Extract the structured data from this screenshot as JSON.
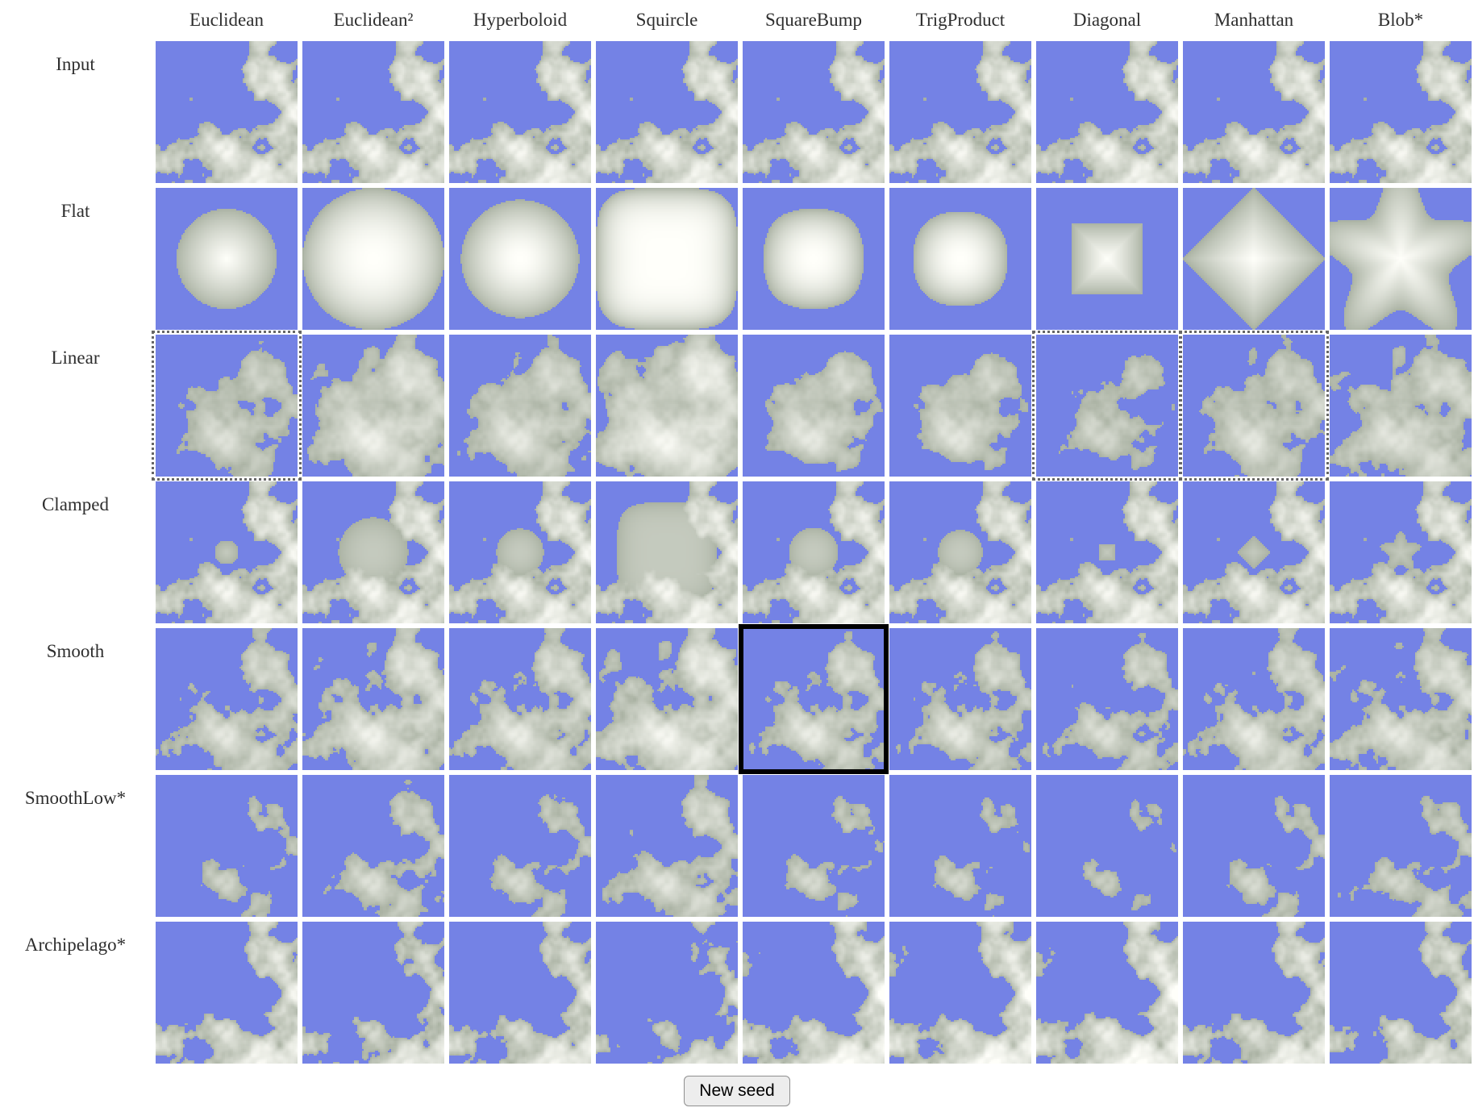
{
  "columns": [
    {
      "key": "euclidean",
      "label": "Euclidean"
    },
    {
      "key": "euclidean2",
      "label": "Euclidean²"
    },
    {
      "key": "hyperboloid",
      "label": "Hyperboloid"
    },
    {
      "key": "squircle",
      "label": "Squircle"
    },
    {
      "key": "squarebump",
      "label": "SquareBump"
    },
    {
      "key": "trigproduct",
      "label": "TrigProduct"
    },
    {
      "key": "diagonal",
      "label": "Diagonal"
    },
    {
      "key": "manhattan",
      "label": "Manhattan"
    },
    {
      "key": "blob",
      "label": "Blob*"
    }
  ],
  "rows": [
    {
      "key": "input",
      "label": "Input"
    },
    {
      "key": "flat",
      "label": "Flat"
    },
    {
      "key": "linear",
      "label": "Linear"
    },
    {
      "key": "clamped",
      "label": "Clamped"
    },
    {
      "key": "smooth",
      "label": "Smooth"
    },
    {
      "key": "smoothlow",
      "label": "SmoothLow*"
    },
    {
      "key": "archipelago",
      "label": "Archipelago*"
    }
  ],
  "highlights": {
    "selected": {
      "row": "smooth",
      "col": "squarebump"
    },
    "dotted": [
      {
        "row": "linear",
        "col": "euclidean"
      },
      {
        "row": "linear",
        "col": "diagonal"
      },
      {
        "row": "linear",
        "col": "manhattan"
      }
    ]
  },
  "button": {
    "label": "New seed"
  },
  "colors": {
    "water": "#7482E5",
    "land_low": "#A9B1A2",
    "land_high": "#FFFFFA",
    "text": "#2E2E2E",
    "dotted_border": "#666666",
    "selected_border": "#000000",
    "button_bg": "#EDEDED",
    "button_border": "#8F8F8F"
  }
}
